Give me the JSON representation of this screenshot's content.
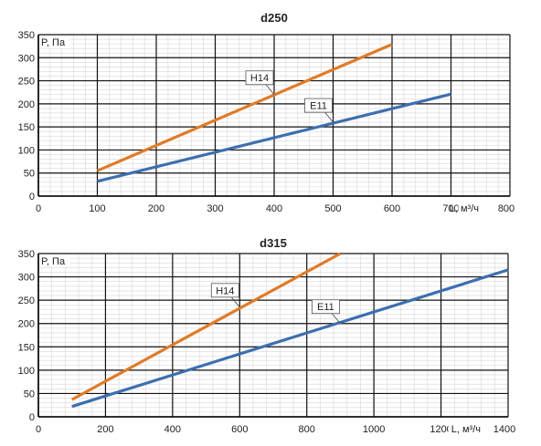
{
  "chart_data": [
    {
      "type": "line",
      "title": "d250",
      "ylabel": "P, Па",
      "xlabel": "L, м³/ч",
      "xlim": [
        0,
        800
      ],
      "ylim": [
        0,
        350
      ],
      "xticks": [
        0,
        100,
        200,
        300,
        400,
        500,
        600,
        700,
        800
      ],
      "yticks": [
        0,
        50,
        100,
        150,
        200,
        250,
        300,
        350
      ],
      "x_tick_labels": [
        "0",
        "100",
        "200",
        "300",
        "400",
        "500",
        "600",
        "700",
        "800"
      ],
      "y_tick_labels": [
        "0",
        "50",
        "100",
        "150",
        "200",
        "250",
        "300",
        "350"
      ],
      "grid": true,
      "series": [
        {
          "name": "H14",
          "color": "#e07b28",
          "x": [
            100,
            600
          ],
          "y": [
            55,
            329
          ],
          "label_at": [
            400,
            220
          ]
        },
        {
          "name": "E11",
          "color": "#3d6fb0",
          "x": [
            100,
            700
          ],
          "y": [
            32,
            221
          ],
          "label_at": [
            500,
            160
          ]
        }
      ]
    },
    {
      "type": "line",
      "title": "d315",
      "ylabel": "P, Па",
      "xlabel": "L, м³/ч",
      "xlim": [
        0,
        1400
      ],
      "ylim": [
        0,
        350
      ],
      "xticks": [
        0,
        200,
        400,
        600,
        800,
        1000,
        1200,
        1400
      ],
      "yticks": [
        0,
        50,
        100,
        150,
        200,
        250,
        300,
        350
      ],
      "x_tick_labels": [
        "0",
        "200",
        "400",
        "600",
        "800",
        "1000",
        "1200",
        "1400"
      ],
      "y_tick_labels": [
        "0",
        "50",
        "100",
        "150",
        "200",
        "250",
        "300",
        "350"
      ],
      "grid": true,
      "series": [
        {
          "name": "H14",
          "color": "#e07b28",
          "x": [
            100,
            900
          ],
          "y": [
            37,
            350
          ],
          "label_at": [
            600,
            235
          ]
        },
        {
          "name": "E11",
          "color": "#3d6fb0",
          "x": [
            100,
            1400
          ],
          "y": [
            22,
            315
          ],
          "label_at": [
            900,
            200
          ]
        }
      ]
    }
  ]
}
